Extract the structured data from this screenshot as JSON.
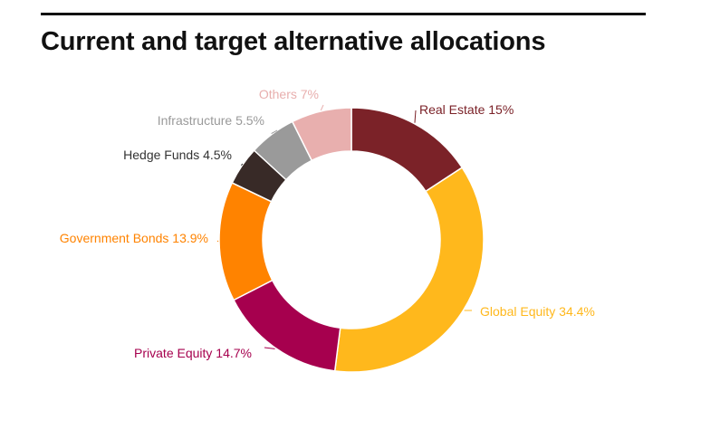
{
  "title": "Current and target alternative allocations",
  "chart_data": {
    "type": "pie",
    "variant": "donut",
    "slices": [
      {
        "label": "Real Estate",
        "value": 15,
        "display": "15%",
        "color": "#7b2228"
      },
      {
        "label": "Global Equity",
        "value": 34.4,
        "display": "34.4%",
        "color": "#ffb81c"
      },
      {
        "label": "Private Equity",
        "value": 14.7,
        "display": "14.7%",
        "color": "#a6004e"
      },
      {
        "label": "Government Bonds",
        "value": 13.9,
        "display": "13.9%",
        "color": "#ff8300"
      },
      {
        "label": "Hedge Funds",
        "value": 4.5,
        "display": "4.5%",
        "color": "#382a27"
      },
      {
        "label": "Infrastructure",
        "value": 5.5,
        "display": "5.5%",
        "color": "#9a9a9a"
      },
      {
        "label": "Others",
        "value": 7,
        "display": "7%",
        "color": "#e8afae"
      }
    ],
    "label_colors": [
      "#7b2228",
      "#ffb81c",
      "#a6004e",
      "#ff8300",
      "#333333",
      "#9a9a9a",
      "#e8afae"
    ]
  }
}
